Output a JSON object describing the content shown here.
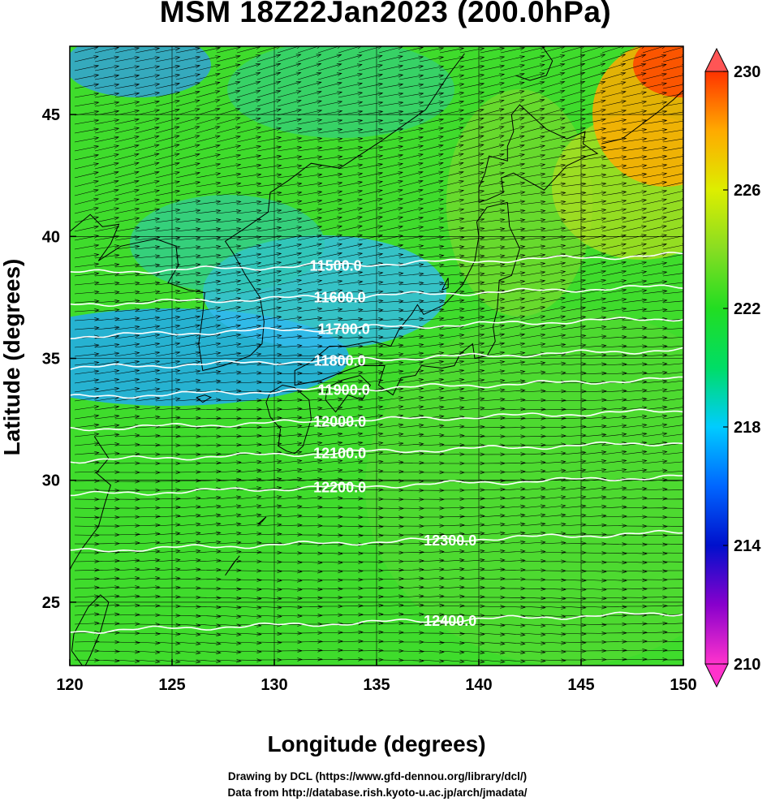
{
  "title": "MSM 18Z22Jan2023 (200.0hPa)",
  "x_axis": {
    "label": "Longitude (degrees)",
    "range": [
      120,
      150
    ],
    "ticks": [
      {
        "value": 120,
        "label": "120"
      },
      {
        "value": 125,
        "label": "125"
      },
      {
        "value": 130,
        "label": "130"
      },
      {
        "value": 135,
        "label": "135"
      },
      {
        "value": 140,
        "label": "140"
      },
      {
        "value": 145,
        "label": "145"
      },
      {
        "value": 150,
        "label": "150"
      }
    ]
  },
  "y_axis": {
    "label": "Latitude  (degrees)",
    "range": [
      22.4,
      47.8
    ],
    "ticks": [
      {
        "value": 25,
        "label": "25"
      },
      {
        "value": 30,
        "label": "30"
      },
      {
        "value": 35,
        "label": "35"
      },
      {
        "value": 40,
        "label": "40"
      },
      {
        "value": 45,
        "label": "45"
      }
    ]
  },
  "colorbar": {
    "range": [
      210,
      230
    ],
    "ticks": [
      {
        "value": 210,
        "label": "210"
      },
      {
        "value": 214,
        "label": "214"
      },
      {
        "value": 218,
        "label": "218"
      },
      {
        "value": 222,
        "label": "222"
      },
      {
        "value": 226,
        "label": "226"
      },
      {
        "value": 230,
        "label": "230"
      }
    ],
    "colors": [
      "#ff33cc",
      "#8800cc",
      "#0010cc",
      "#0066ff",
      "#00ccff",
      "#00dd66",
      "#22dd22",
      "#88dd22",
      "#ddee00",
      "#ffaa00",
      "#ff3300"
    ],
    "under_color": "#ff33cc",
    "over_color": "#ff5555"
  },
  "contours": [
    {
      "label": "11500.0",
      "lat": 38.5
    },
    {
      "label": "11600.0",
      "lat": 37.2
    },
    {
      "label": "11700.0",
      "lat": 35.9
    },
    {
      "label": "11800.0",
      "lat": 34.6
    },
    {
      "label": "11900.0",
      "lat": 33.4
    },
    {
      "label": "12000.0",
      "lat": 32.1
    },
    {
      "label": "12100.0",
      "lat": 30.8
    },
    {
      "label": "12200.0",
      "lat": 29.4
    },
    {
      "label": "12300.0",
      "lat": 27.1
    },
    {
      "label": "12400.0",
      "lat": 23.8
    }
  ],
  "credits": {
    "line1": "Drawing by DCL (https://www.gfd-dennou.org/library/dcl/)",
    "line2": "Data from http://database.rish.kyoto-u.ac.jp/arch/jmadata/"
  }
}
